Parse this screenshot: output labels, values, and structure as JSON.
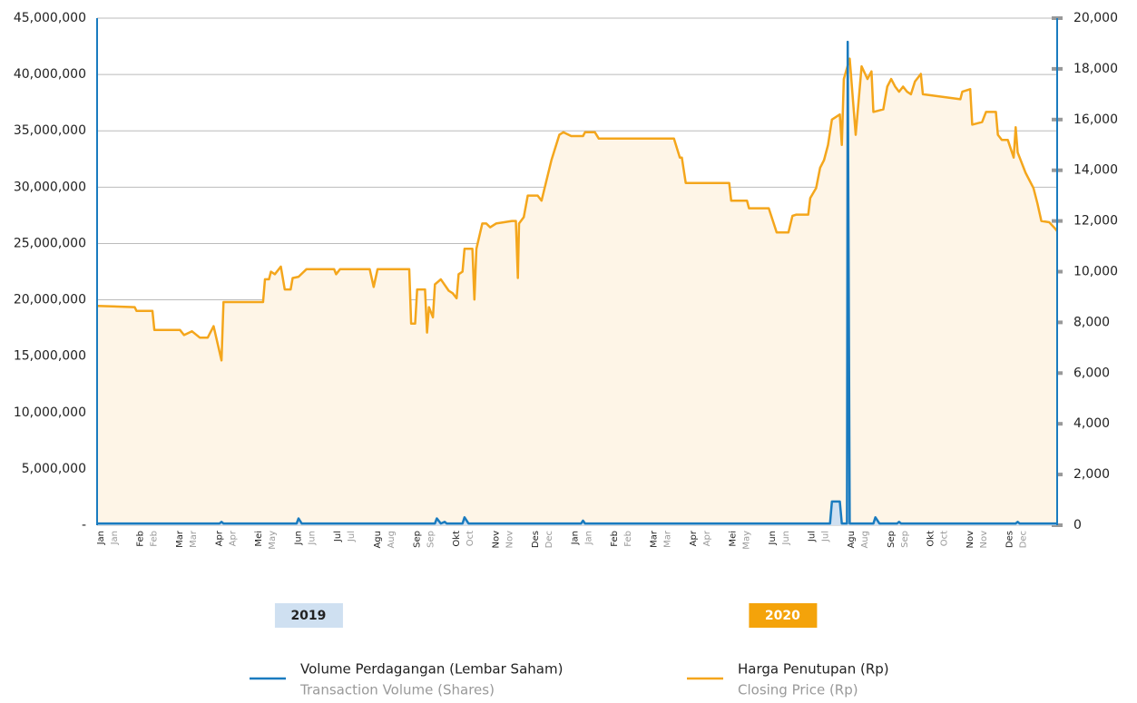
{
  "chart_data": {
    "type": "line",
    "xlim": [
      0,
      24.3
    ],
    "xticks": [
      {
        "value": 0,
        "label": "Jan",
        "label_en": "Jan"
      },
      {
        "value": 1,
        "label": "Feb",
        "label_en": "Feb"
      },
      {
        "value": 2,
        "label": "Mar",
        "label_en": "Mar"
      },
      {
        "value": 3,
        "label": "Apr",
        "label_en": "Apr"
      },
      {
        "value": 4,
        "label": "Mei",
        "label_en": "May"
      },
      {
        "value": 5,
        "label": "Jun",
        "label_en": "Jun"
      },
      {
        "value": 6,
        "label": "Jul",
        "label_en": "Jul"
      },
      {
        "value": 7,
        "label": "Agu",
        "label_en": "Aug"
      },
      {
        "value": 8,
        "label": "Sep",
        "label_en": "Sep"
      },
      {
        "value": 9,
        "label": "Okt",
        "label_en": "Oct"
      },
      {
        "value": 10,
        "label": "Nov",
        "label_en": "Nov"
      },
      {
        "value": 11,
        "label": "Des",
        "label_en": "Dec"
      },
      {
        "value": 12,
        "label": "Jan",
        "label_en": "Jan"
      },
      {
        "value": 13,
        "label": "Feb",
        "label_en": "Feb"
      },
      {
        "value": 14,
        "label": "Mar",
        "label_en": "Mar"
      },
      {
        "value": 15,
        "label": "Apr",
        "label_en": "Apr"
      },
      {
        "value": 16,
        "label": "Mei",
        "label_en": "May"
      },
      {
        "value": 17,
        "label": "Jun",
        "label_en": "Jun"
      },
      {
        "value": 18,
        "label": "Jul",
        "label_en": "Jul"
      },
      {
        "value": 19,
        "label": "Agu",
        "label_en": "Aug"
      },
      {
        "value": 20,
        "label": "Sep",
        "label_en": "Sep"
      },
      {
        "value": 21,
        "label": "Okt",
        "label_en": "Oct"
      },
      {
        "value": 22,
        "label": "Nov",
        "label_en": "Nov"
      },
      {
        "value": 23,
        "label": "Des",
        "label_en": "Dec"
      }
    ],
    "years": [
      {
        "value": 0,
        "label": "2019",
        "color": "#cfe0f1"
      },
      {
        "value": 12,
        "label": "2020",
        "color": "#f4a30a"
      }
    ],
    "ylim": [
      0,
      45000000
    ],
    "yticks": [
      {
        "value": 0,
        "label": "-"
      },
      {
        "value": 5000000,
        "label": "5,000,000"
      },
      {
        "value": 10000000,
        "label": "10,000,000"
      },
      {
        "value": 15000000,
        "label": "15,000,000"
      },
      {
        "value": 20000000,
        "label": "20,000,000"
      },
      {
        "value": 25000000,
        "label": "25,000,000"
      },
      {
        "value": 30000000,
        "label": "30,000,000"
      },
      {
        "value": 35000000,
        "label": "35,000,000"
      },
      {
        "value": 40000000,
        "label": "40,000,000"
      },
      {
        "value": 45000000,
        "label": "45,000,000"
      }
    ],
    "y2lim": [
      0,
      20000
    ],
    "y2ticks": [
      0,
      {
        "value": 2000,
        "label": "2,000"
      },
      {
        "value": 4000,
        "label": "4,000"
      },
      {
        "value": 6000,
        "label": "6,000"
      },
      {
        "value": 8000,
        "label": "8,000"
      },
      {
        "value": 10000,
        "label": "10,000"
      },
      {
        "value": 12000,
        "label": "12,000"
      },
      {
        "value": 14000,
        "label": "14,000"
      },
      {
        "value": 16000,
        "label": "16,000"
      },
      {
        "value": 18000,
        "label": "18,000"
      },
      {
        "value": 20000,
        "label": "20,000"
      }
    ],
    "grid": true,
    "series": [
      {
        "name": "Volume Perdagangan (Lembar Saham)",
        "name_en": "Transaction Volume (Shares)",
        "color": "#1a7bbf",
        "fill": "#cfe0f1",
        "axis": "y",
        "x": [
          0,
          3.1,
          3.15,
          3.2,
          5.05,
          5.1,
          5.18,
          8.55,
          8.6,
          8.7,
          8.8,
          8.85,
          9.25,
          9.3,
          9.4,
          12.25,
          12.3,
          12.35,
          18.55,
          18.6,
          18.8,
          18.85,
          18.98,
          19.0,
          19.05,
          19.65,
          19.7,
          19.8,
          20.25,
          20.3,
          20.35,
          23.25,
          23.3,
          23.35,
          24.3
        ],
        "values": [
          150000,
          150000,
          300000,
          150000,
          150000,
          600000,
          150000,
          150000,
          600000,
          150000,
          300000,
          150000,
          150000,
          700000,
          150000,
          150000,
          400000,
          150000,
          150000,
          2100000,
          2100000,
          150000,
          150000,
          42900000,
          150000,
          150000,
          700000,
          150000,
          150000,
          300000,
          150000,
          150000,
          300000,
          150000,
          150000
        ]
      },
      {
        "name": "Harga Penutupan (Rp)",
        "name_en": "Closing Price (Rp)",
        "color": "#f4a61c",
        "fill": "#fef5e7",
        "axis": "y2",
        "x": [
          0,
          0.95,
          1,
          1.4,
          1.45,
          2.1,
          2.2,
          2.4,
          2.6,
          2.8,
          2.95,
          3.15,
          3.2,
          4.2,
          4.25,
          4.35,
          4.4,
          4.5,
          4.65,
          4.75,
          4.9,
          4.95,
          5.1,
          5.3,
          6.0,
          6.05,
          6.15,
          6.9,
          7.0,
          7.1,
          7.9,
          7.95,
          8.05,
          8.1,
          8.3,
          8.35,
          8.4,
          8.5,
          8.55,
          8.7,
          8.9,
          9.0,
          9.1,
          9.15,
          9.25,
          9.3,
          9.5,
          9.55,
          9.6,
          9.75,
          9.85,
          9.95,
          10.1,
          10.3,
          10.5,
          10.6,
          10.65,
          10.68,
          10.8,
          10.9,
          11.15,
          11.25,
          11.5,
          11.7,
          11.8,
          12.0,
          12.3,
          12.35,
          12.6,
          12.7,
          14.6,
          14.75,
          14.8,
          14.9,
          16.0,
          16.05,
          16.45,
          16.5,
          17.0,
          17.2,
          17.5,
          17.6,
          17.7,
          18.0,
          18.05,
          18.2,
          18.3,
          18.4,
          18.5,
          18.6,
          18.8,
          18.85,
          18.9,
          19.05,
          19.2,
          19.35,
          19.5,
          19.6,
          19.65,
          19.9,
          20.0,
          20.1,
          20.2,
          20.3,
          20.4,
          20.5,
          20.6,
          20.7,
          20.85,
          20.9,
          21.85,
          21.9,
          22.1,
          22.15,
          22.4,
          22.5,
          22.75,
          22.8,
          22.9,
          23.05,
          23.2,
          23.25,
          23.3,
          23.5,
          23.7,
          23.8,
          23.9,
          24.1,
          24.25,
          24.3
        ],
        "values": [
          8650,
          8600,
          8450,
          8450,
          7700,
          7700,
          7500,
          7650,
          7400,
          7400,
          7850,
          6500,
          8800,
          8800,
          9700,
          9700,
          10000,
          9900,
          10200,
          9300,
          9300,
          9750,
          9800,
          10100,
          10100,
          9900,
          10100,
          10100,
          9400,
          10100,
          10100,
          7950,
          7950,
          9300,
          9300,
          7600,
          8600,
          8200,
          9500,
          9700,
          9250,
          9150,
          8950,
          9900,
          10000,
          10900,
          10900,
          8900,
          10900,
          11900,
          11900,
          11750,
          11900,
          11950,
          12000,
          12000,
          9750,
          11900,
          12150,
          13000,
          13000,
          12800,
          14400,
          15400,
          15500,
          15350,
          15350,
          15500,
          15500,
          15250,
          15250,
          14500,
          14500,
          13500,
          13500,
          12800,
          12800,
          12500,
          12500,
          11550,
          11550,
          12200,
          12250,
          12250,
          12900,
          13300,
          14100,
          14400,
          15000,
          16000,
          16200,
          15000,
          17600,
          18400,
          15400,
          18100,
          17600,
          17900,
          16300,
          16400,
          17300,
          17600,
          17300,
          17100,
          17300,
          17100,
          17000,
          17500,
          17800,
          17000,
          16800,
          17100,
          17200,
          15800,
          15900,
          16300,
          16300,
          15400,
          15200,
          15200,
          14500,
          15700,
          14700,
          13900,
          13300,
          12700,
          12000,
          11950,
          11700,
          11600
        ]
      }
    ]
  }
}
